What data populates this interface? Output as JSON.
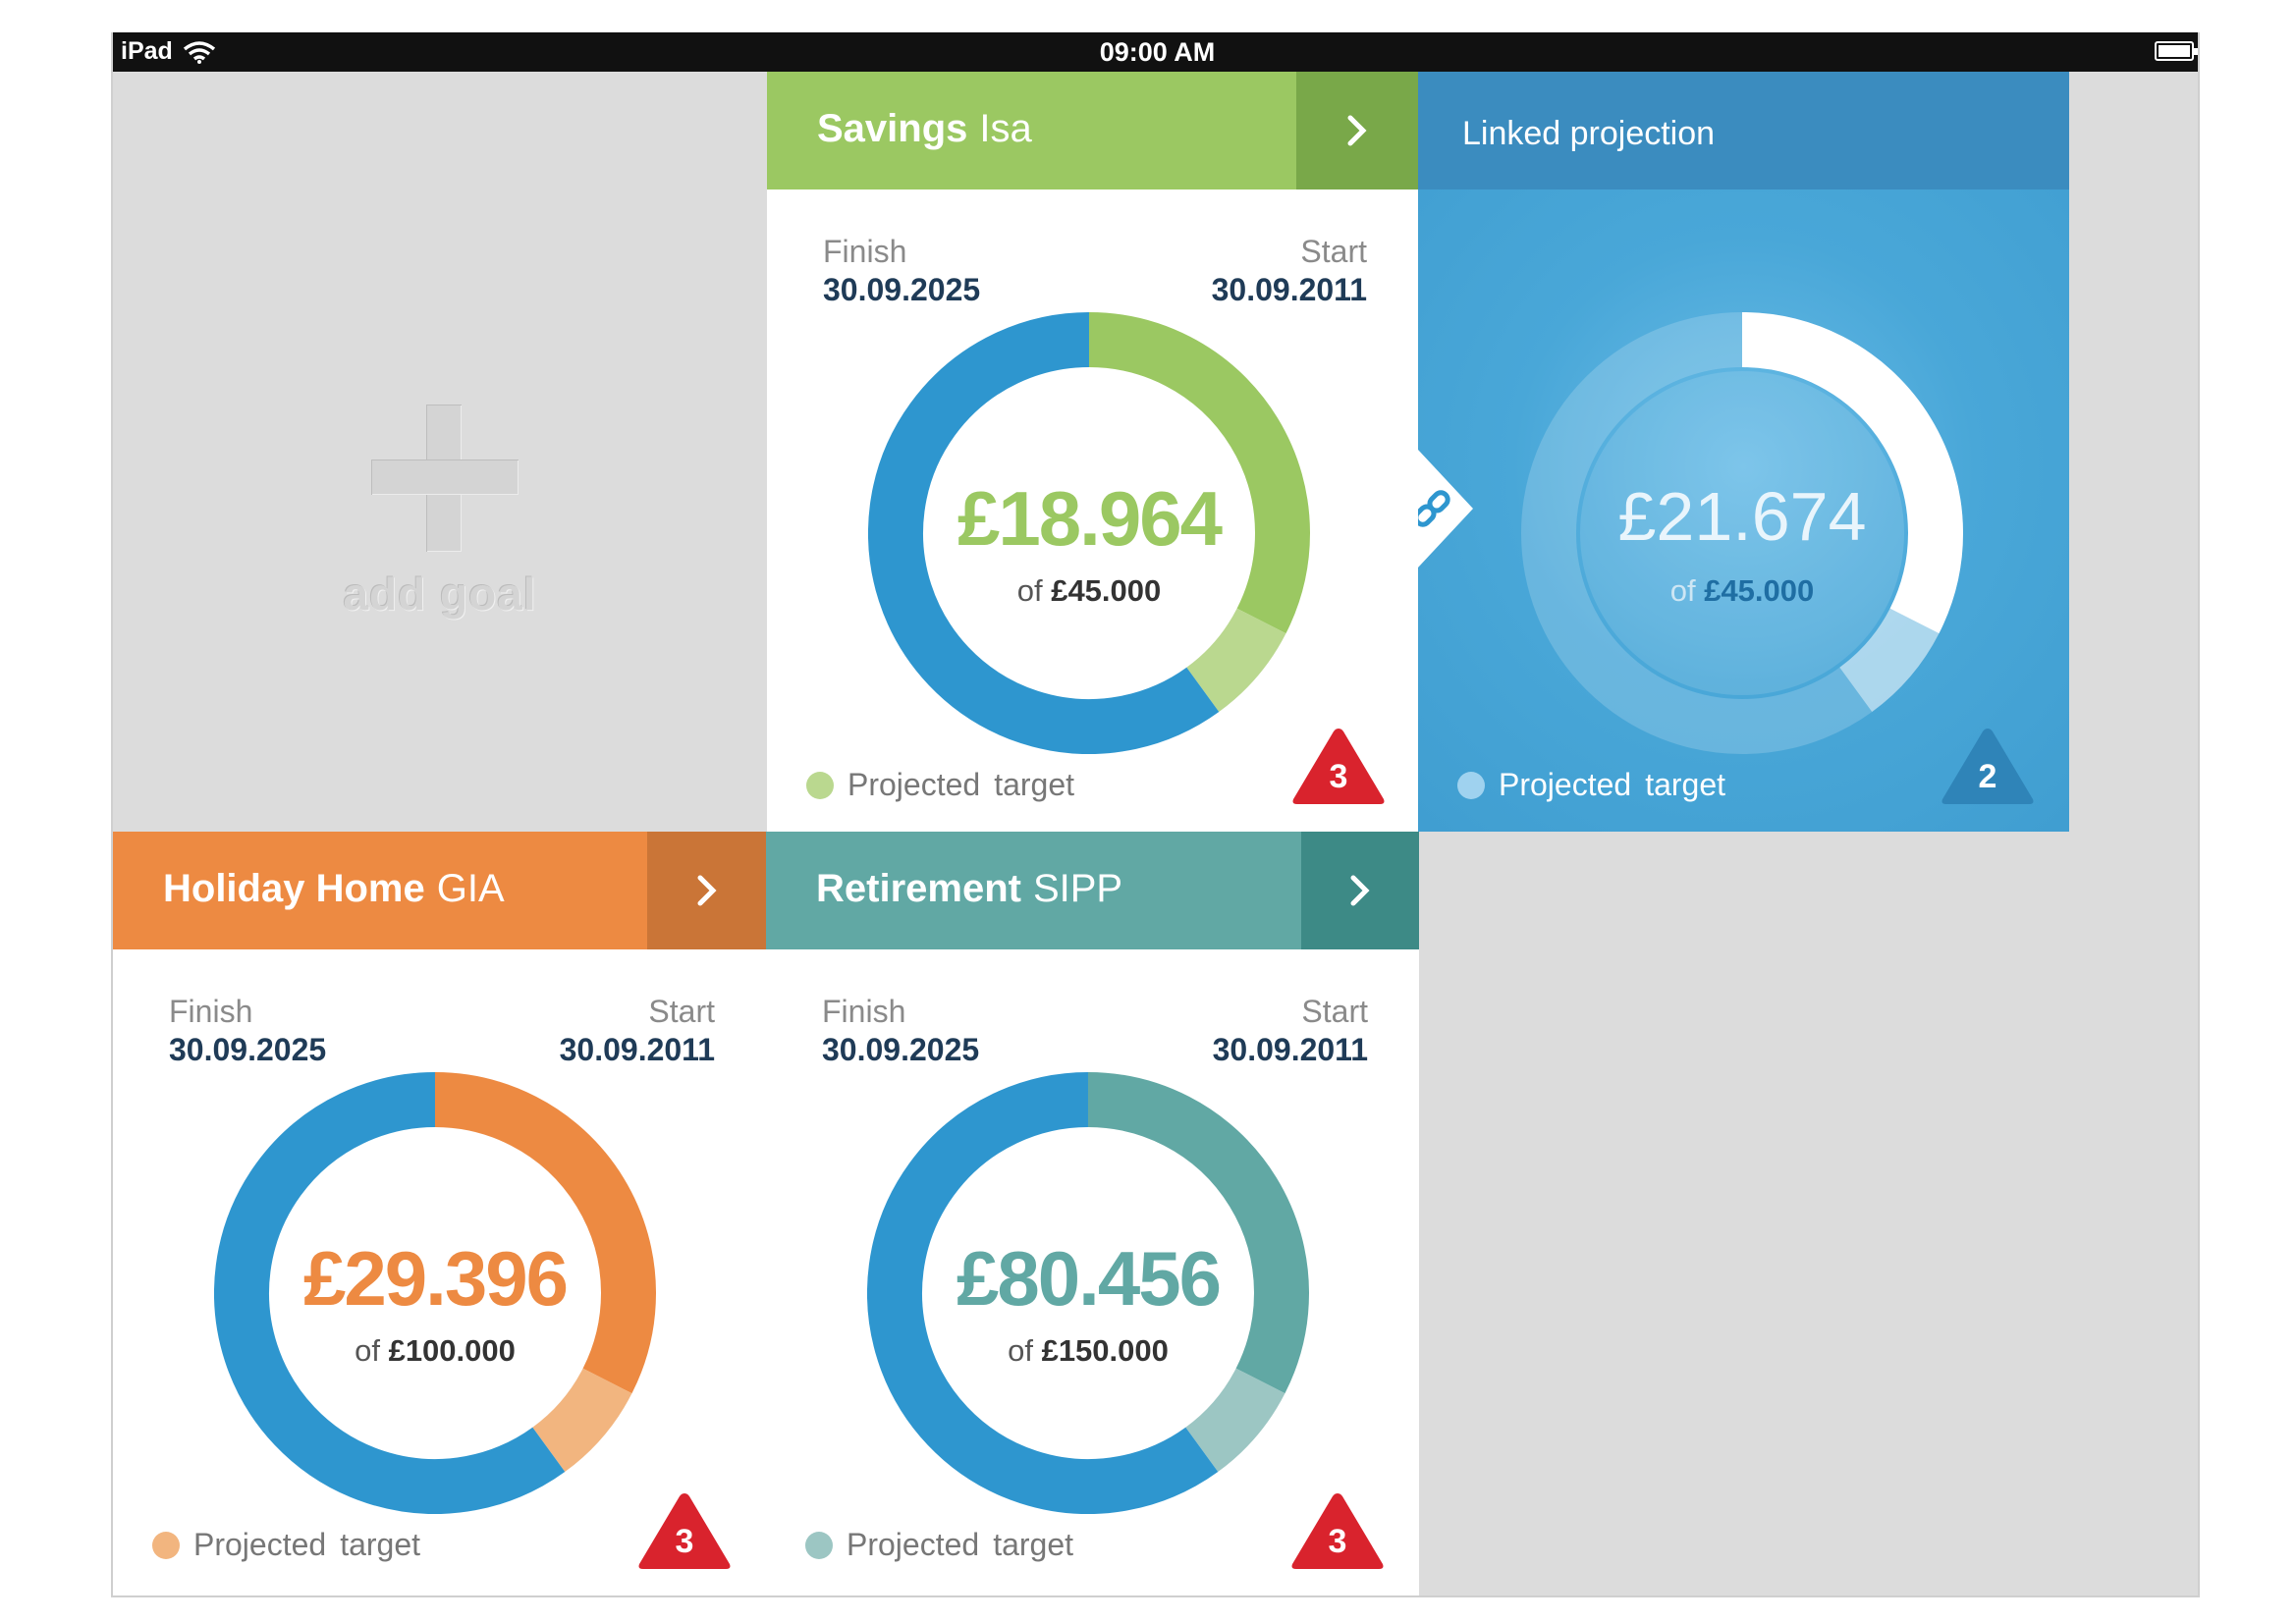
{
  "status_bar": {
    "device": "iPad",
    "time": "09:00 AM"
  },
  "add_goal": {
    "label": "add goal"
  },
  "goals": {
    "savings": {
      "name": "Savings",
      "type": "Isa",
      "color": "#9bc862",
      "color_dark": "#79a849",
      "color_light": "#bad88f",
      "finish_label": "Finish",
      "finish_date": "30.09.2025",
      "start_label": "Start",
      "start_date": "30.09.2011",
      "amount": "£18.964",
      "of_prefix": "of",
      "target": "£45.000",
      "legend_projected": "Projected",
      "legend_target": "target",
      "alerts": "3",
      "progress_fraction": 0.325,
      "projected_fraction": 0.075
    },
    "holiday": {
      "name": "Holiday Home",
      "type": "GIA",
      "color": "#ed8a42",
      "color_dark": "#ca7537",
      "color_light": "#f2b57f",
      "finish_label": "Finish",
      "finish_date": "30.09.2025",
      "start_label": "Start",
      "start_date": "30.09.2011",
      "amount": "£29.396",
      "of_prefix": "of",
      "target": "£100.000",
      "legend_projected": "Projected",
      "legend_target": "target",
      "alerts": "3",
      "progress_fraction": 0.325,
      "projected_fraction": 0.075
    },
    "retirement": {
      "name": "Retirement",
      "type": "SIPP",
      "color": "#61a8a4",
      "color_dark": "#3d8a86",
      "color_light": "#9cc6c3",
      "finish_label": "Finish",
      "finish_date": "30.09.2025",
      "start_label": "Start",
      "start_date": "30.09.2011",
      "amount": "£80.456",
      "of_prefix": "of",
      "target": "£150.000",
      "legend_projected": "Projected",
      "legend_target": "target",
      "alerts": "3",
      "progress_fraction": 0.325,
      "projected_fraction": 0.075
    }
  },
  "linked_projection": {
    "title": "Linked projection",
    "amount": "£21.674",
    "of_prefix": "of",
    "target": "£45.000",
    "legend_projected": "Projected",
    "legend_target": "target",
    "alerts": "2",
    "progress_fraction": 0.325,
    "projected_fraction": 0.075
  },
  "colors": {
    "blue": "#2e96cf",
    "alert_red": "#d9232d",
    "alert_blue": "#2f84b8",
    "background": "#dcdcdc"
  },
  "icons": [
    "wifi-icon",
    "battery-icon",
    "plus-icon",
    "chevron-right-icon",
    "link-icon",
    "alert-triangle-icon"
  ]
}
